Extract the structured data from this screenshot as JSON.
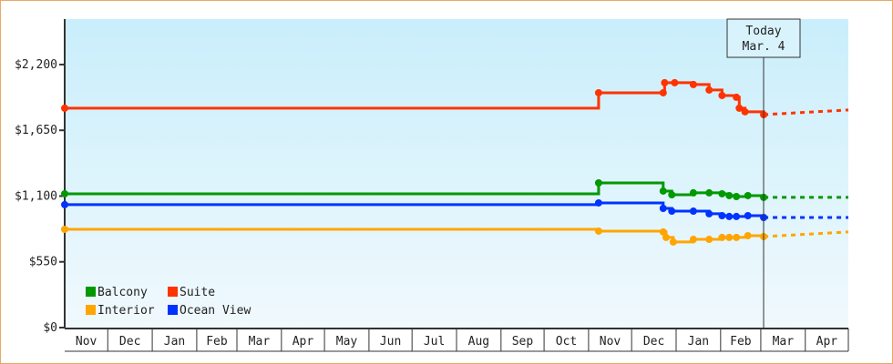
{
  "chart_data": {
    "type": "line",
    "title": "",
    "xlabel": "",
    "ylabel": "",
    "ylim": [
      0,
      2580
    ],
    "y_ticks": [
      "$0",
      "$550",
      "$1,100",
      "$1,650",
      "$2,200"
    ],
    "y_tick_values": [
      0,
      550,
      1100,
      1650,
      2200
    ],
    "x_range": [
      "2013-11-01",
      "2015-05-01"
    ],
    "x_ticks": [
      "Nov",
      "Dec",
      "Jan",
      "Feb",
      "Mar",
      "Apr",
      "May",
      "Jun",
      "Jul",
      "Aug",
      "Sep",
      "Oct",
      "Nov",
      "Dec",
      "Jan",
      "Feb",
      "Mar",
      "Apr"
    ],
    "grid": false,
    "legend_position": "bottom-left",
    "today": {
      "label": "Today",
      "date_label": "Mar. 4",
      "date": "2015-03-04"
    },
    "series": [
      {
        "name": "Balcony",
        "color": "#009900",
        "x": [
          "2013-11-01",
          "2014-11-08",
          "2014-12-23",
          "2014-12-29",
          "2015-01-13",
          "2015-01-24",
          "2015-02-02",
          "2015-02-07",
          "2015-02-12",
          "2015-02-20",
          "2015-03-03"
        ],
        "y": [
          1119,
          1210,
          1142,
          1111,
          1127,
          1127,
          1119,
          1104,
          1096,
          1104,
          1089
        ],
        "projection": {
          "x": "2015-05-01",
          "y": 1089
        }
      },
      {
        "name": "Suite",
        "color": "#ff3300",
        "x": [
          "2013-11-01",
          "2014-11-08",
          "2014-12-23",
          "2014-12-24",
          "2014-12-31",
          "2015-01-13",
          "2015-01-24",
          "2015-02-02",
          "2015-02-12",
          "2015-02-14",
          "2015-02-18",
          "2015-03-03"
        ],
        "y": [
          1835,
          1964,
          1964,
          2048,
          2048,
          2033,
          1987,
          1941,
          1926,
          1835,
          1805,
          1781
        ],
        "projection": {
          "x": "2015-05-01",
          "y": 1820
        }
      },
      {
        "name": "Interior",
        "color": "#ffa500",
        "x": [
          "2013-11-01",
          "2014-11-08",
          "2014-12-23",
          "2014-12-25",
          "2014-12-30",
          "2015-01-13",
          "2015-01-24",
          "2015-02-02",
          "2015-02-07",
          "2015-02-12",
          "2015-02-20",
          "2015-03-03"
        ],
        "y": [
          822,
          807,
          800,
          754,
          716,
          738,
          738,
          754,
          754,
          754,
          769,
          761
        ],
        "projection": {
          "x": "2015-05-01",
          "y": 800
        }
      },
      {
        "name": "Ocean View",
        "color": "#0033ff",
        "x": [
          "2013-11-01",
          "2014-11-08",
          "2014-12-23",
          "2014-12-29",
          "2015-01-13",
          "2015-01-24",
          "2015-02-02",
          "2015-02-07",
          "2015-02-12",
          "2015-02-20",
          "2015-03-03"
        ],
        "y": [
          1028,
          1043,
          997,
          974,
          974,
          952,
          936,
          929,
          929,
          936,
          921
        ],
        "projection": {
          "x": "2015-05-01",
          "y": 921
        }
      }
    ]
  }
}
